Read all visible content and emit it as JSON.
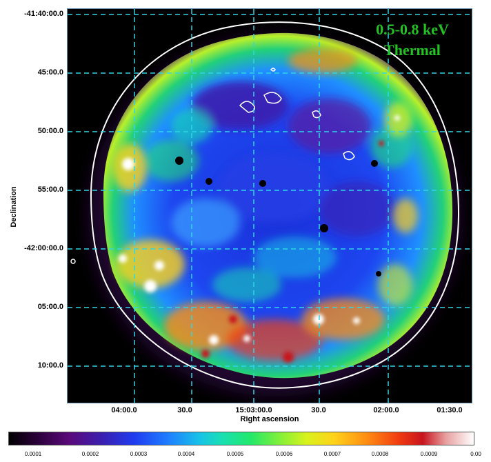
{
  "figure": {
    "energy_label_line1": "0.5-0.8 keV",
    "energy_label_line2": "Thermal",
    "energy_label_color": "#22c323",
    "grid_color": "#2fd6e6",
    "contour_color": "#ffffff"
  },
  "axes": {
    "ylabel": "Declination",
    "xlabel": "Right ascension",
    "yticks": [
      "-41:40:00.0",
      "45:00.0",
      "50:00.0",
      "55:00.0",
      "-42:00:00.0",
      "05:00.0",
      "10:00.0"
    ],
    "xticks": [
      "04:00.0",
      "30.0",
      "15:03:00.0",
      "30.0",
      "02:00.0",
      "01:30.0"
    ]
  },
  "colorbar": {
    "ticks": [
      "0.0001",
      "0.0002",
      "0.0003",
      "0.0004",
      "0.0005",
      "0.0006",
      "0.0007",
      "0.0008",
      "0.0009",
      "0.00"
    ]
  }
}
